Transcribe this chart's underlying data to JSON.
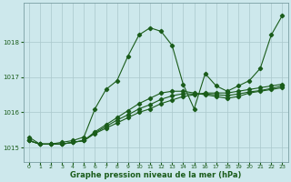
{
  "xlabel": "Graphe pression niveau de la mer (hPa)",
  "background_color": "#cde8ec",
  "grid_color": "#aac8cc",
  "line_color": "#1a5c1a",
  "xlim": [
    -0.5,
    23.5
  ],
  "ylim": [
    1014.6,
    1019.1
  ],
  "yticks": [
    1015,
    1016,
    1017,
    1018
  ],
  "xticks": [
    0,
    1,
    2,
    3,
    4,
    5,
    6,
    7,
    8,
    9,
    10,
    11,
    12,
    13,
    14,
    15,
    16,
    17,
    18,
    19,
    20,
    21,
    22,
    23
  ],
  "line1_x": [
    0,
    1,
    2,
    3,
    4,
    5,
    6,
    7,
    8,
    9,
    10,
    11,
    12,
    13,
    14,
    15,
    16,
    17,
    18,
    19,
    20,
    21,
    22,
    23
  ],
  "line1_y": [
    1015.3,
    1015.1,
    1015.1,
    1015.15,
    1015.2,
    1015.3,
    1016.1,
    1016.65,
    1016.9,
    1017.6,
    1018.2,
    1018.4,
    1018.3,
    1017.9,
    1016.8,
    1016.1,
    1017.1,
    1016.75,
    1016.6,
    1016.75,
    1016.9,
    1017.25,
    1018.2,
    1018.75
  ],
  "line2_x": [
    0,
    1,
    2,
    3,
    4,
    5,
    6,
    7,
    8,
    9,
    10,
    11,
    12,
    13,
    14,
    15,
    16,
    17,
    18,
    19,
    20,
    21,
    22,
    23
  ],
  "line2_y": [
    1015.2,
    1015.1,
    1015.1,
    1015.1,
    1015.15,
    1015.2,
    1015.4,
    1015.55,
    1015.7,
    1015.85,
    1016.0,
    1016.1,
    1016.25,
    1016.35,
    1016.45,
    1016.5,
    1016.55,
    1016.55,
    1016.55,
    1016.6,
    1016.65,
    1016.7,
    1016.75,
    1016.8
  ],
  "line3_x": [
    0,
    1,
    2,
    3,
    4,
    5,
    6,
    7,
    8,
    9,
    10,
    11,
    12,
    13,
    14,
    15,
    16,
    17,
    18,
    19,
    20,
    21,
    22,
    23
  ],
  "line3_y": [
    1015.2,
    1015.1,
    1015.1,
    1015.1,
    1015.15,
    1015.2,
    1015.45,
    1015.65,
    1015.85,
    1016.05,
    1016.25,
    1016.4,
    1016.55,
    1016.6,
    1016.6,
    1016.55,
    1016.5,
    1016.45,
    1016.4,
    1016.45,
    1016.55,
    1016.6,
    1016.65,
    1016.7
  ],
  "line4_x": [
    0,
    1,
    2,
    3,
    4,
    5,
    6,
    7,
    8,
    9,
    10,
    11,
    12,
    13,
    14,
    15,
    16,
    17,
    18,
    19,
    20,
    21,
    22,
    23
  ],
  "line4_y": [
    1015.2,
    1015.1,
    1015.1,
    1015.1,
    1015.15,
    1015.2,
    1015.42,
    1015.6,
    1015.78,
    1015.93,
    1016.1,
    1016.22,
    1016.37,
    1016.47,
    1016.53,
    1016.52,
    1016.52,
    1016.5,
    1016.48,
    1016.52,
    1016.58,
    1016.62,
    1016.68,
    1016.75
  ]
}
